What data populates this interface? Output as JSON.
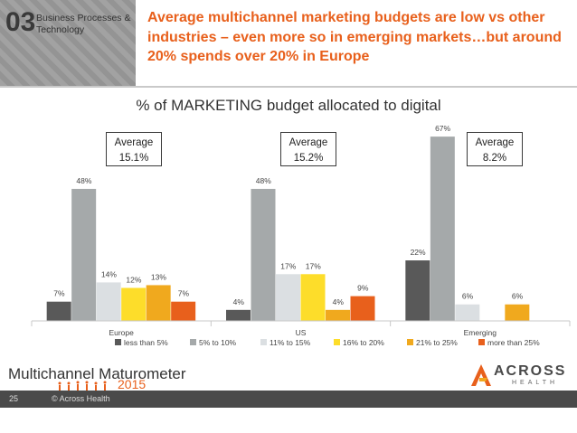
{
  "header": {
    "section_number": "03",
    "section_label": "Business Processes & Technology",
    "headline": "Average multichannel marketing budgets are low vs other industries – even more so in emerging markets…but around 20% spends over 20% in Europe"
  },
  "averages": [
    {
      "label": "Average",
      "value": "15.1%"
    },
    {
      "label": "Average",
      "value": "15.2%"
    },
    {
      "label": "Average",
      "value": "8.2%"
    }
  ],
  "footer": {
    "brand": "Multichannel Maturometer",
    "year": "2015",
    "company": "ACROSS",
    "company_sub": "HEALTH",
    "page_number": "25",
    "copyright": "© Across Health"
  },
  "colors": {
    "accent": "#e8601c",
    "footer_bar": "#4a4a4a"
  },
  "chart_data": {
    "type": "bar",
    "title": "% of MARKETING budget allocated to digital",
    "xlabel": "",
    "ylabel": "",
    "ylim": [
      0,
      70
    ],
    "legend_position": "bottom",
    "categories": [
      "Europe",
      "US",
      "Emerging"
    ],
    "series": [
      {
        "name": "less than 5%",
        "color": "#595959",
        "values": [
          7,
          4,
          22
        ],
        "labels": [
          "7%",
          "4%",
          "22%"
        ]
      },
      {
        "name": "5% to 10%",
        "color": "#a5a9aa",
        "values": [
          48,
          48,
          67
        ],
        "labels": [
          "48%",
          "48%",
          "67%"
        ]
      },
      {
        "name": "11% to 15%",
        "color": "#dbdfe2",
        "values": [
          14,
          17,
          6
        ],
        "labels": [
          "14%",
          "17%",
          "6%"
        ]
      },
      {
        "name": "16% to 20%",
        "color": "#fddd2a",
        "values": [
          12,
          17,
          0
        ],
        "labels": [
          "12%",
          "17%",
          ""
        ]
      },
      {
        "name": "21% to 25%",
        "color": "#f0a91e",
        "values": [
          13,
          4,
          6
        ],
        "labels": [
          "13%",
          "4%",
          "6%"
        ]
      },
      {
        "name": "more than 25%",
        "color": "#e8601c",
        "values": [
          7,
          9,
          0
        ],
        "labels": [
          "7%",
          "9%",
          ""
        ]
      }
    ]
  }
}
